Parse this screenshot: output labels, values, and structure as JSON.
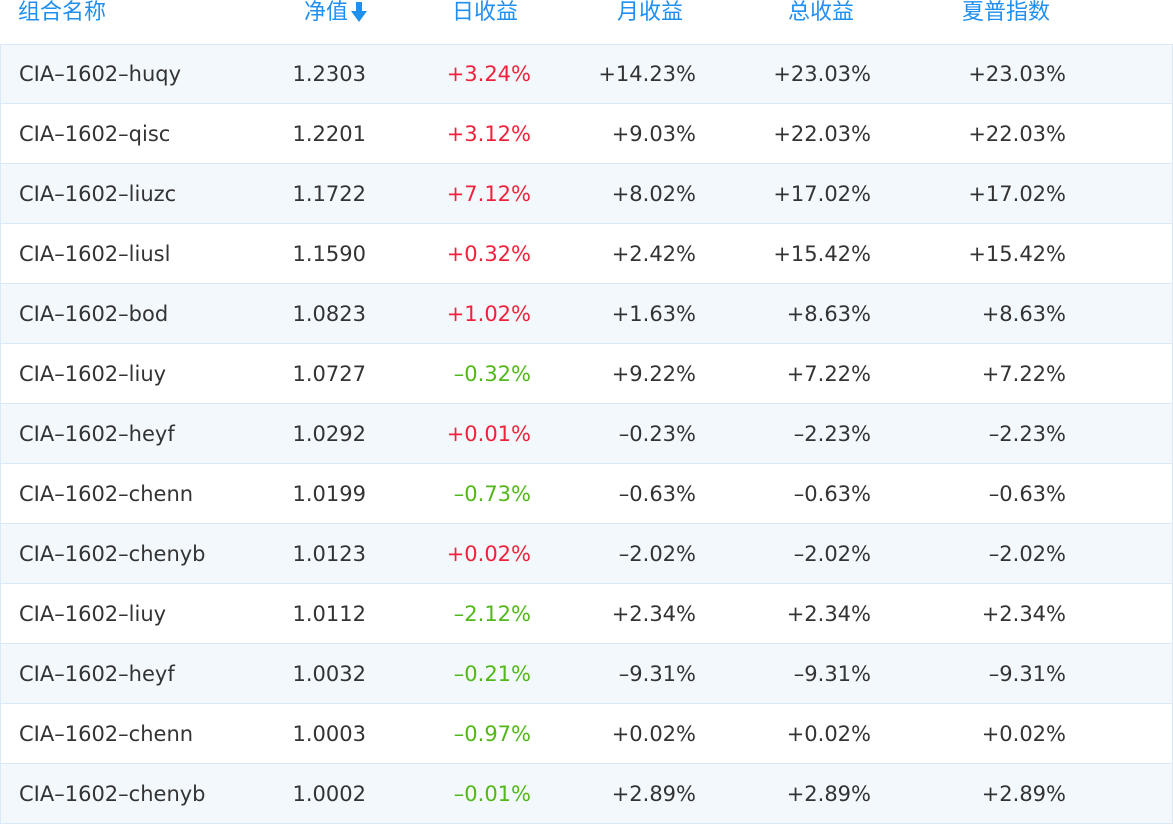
{
  "header": {
    "name": "组合名称",
    "nav": "净值",
    "day": "日收益",
    "month": "月收益",
    "total": "总收益",
    "sharpe": "夏普指数",
    "sort_icon": "arrow-down-icon"
  },
  "colors": {
    "header_text": "#1f8ff0",
    "positive": "#f0223b",
    "negative": "#52b81a",
    "row_alt": "#f3f8fd",
    "border": "#dbe9f7"
  },
  "rows": [
    {
      "name": "CIA–1602–huqy",
      "nav": "1.2303",
      "day": "+3.24%",
      "month": "+14.23%",
      "total": "+23.03%",
      "sharpe": "+23.03%"
    },
    {
      "name": "CIA–1602–qisc",
      "nav": "1.2201",
      "day": "+3.12%",
      "month": "+9.03%",
      "total": "+22.03%",
      "sharpe": "+22.03%"
    },
    {
      "name": "CIA–1602–liuzc",
      "nav": "1.1722",
      "day": "+7.12%",
      "month": "+8.02%",
      "total": "+17.02%",
      "sharpe": "+17.02%"
    },
    {
      "name": "CIA–1602–liusl",
      "nav": "1.1590",
      "day": "+0.32%",
      "month": "+2.42%",
      "total": "+15.42%",
      "sharpe": "+15.42%"
    },
    {
      "name": "CIA–1602–bod",
      "nav": "1.0823",
      "day": "+1.02%",
      "month": "+1.63%",
      "total": "+8.63%",
      "sharpe": "+8.63%"
    },
    {
      "name": "CIA–1602–liuy",
      "nav": "1.0727",
      "day": "–0.32%",
      "month": "+9.22%",
      "total": "+7.22%",
      "sharpe": "+7.22%"
    },
    {
      "name": "CIA–1602–heyf",
      "nav": "1.0292",
      "day": "+0.01%",
      "month": "–0.23%",
      "total": "–2.23%",
      "sharpe": "–2.23%"
    },
    {
      "name": "CIA–1602–chenn",
      "nav": "1.0199",
      "day": "–0.73%",
      "month": "–0.63%",
      "total": "–0.63%",
      "sharpe": "–0.63%"
    },
    {
      "name": "CIA–1602–chenyb",
      "nav": "1.0123",
      "day": "+0.02%",
      "month": "–2.02%",
      "total": "–2.02%",
      "sharpe": "–2.02%"
    },
    {
      "name": "CIA–1602–liuy",
      "nav": "1.0112",
      "day": "–2.12%",
      "month": "+2.34%",
      "total": "+2.34%",
      "sharpe": "+2.34%"
    },
    {
      "name": "CIA–1602–heyf",
      "nav": "1.0032",
      "day": "–0.21%",
      "month": "–9.31%",
      "total": "–9.31%",
      "sharpe": "–9.31%"
    },
    {
      "name": "CIA–1602–chenn",
      "nav": "1.0003",
      "day": "–0.97%",
      "month": "+0.02%",
      "total": "+0.02%",
      "sharpe": "+0.02%"
    },
    {
      "name": "CIA–1602–chenyb",
      "nav": "1.0002",
      "day": "–0.01%",
      "month": "+2.89%",
      "total": "+2.89%",
      "sharpe": "+2.89%"
    }
  ]
}
